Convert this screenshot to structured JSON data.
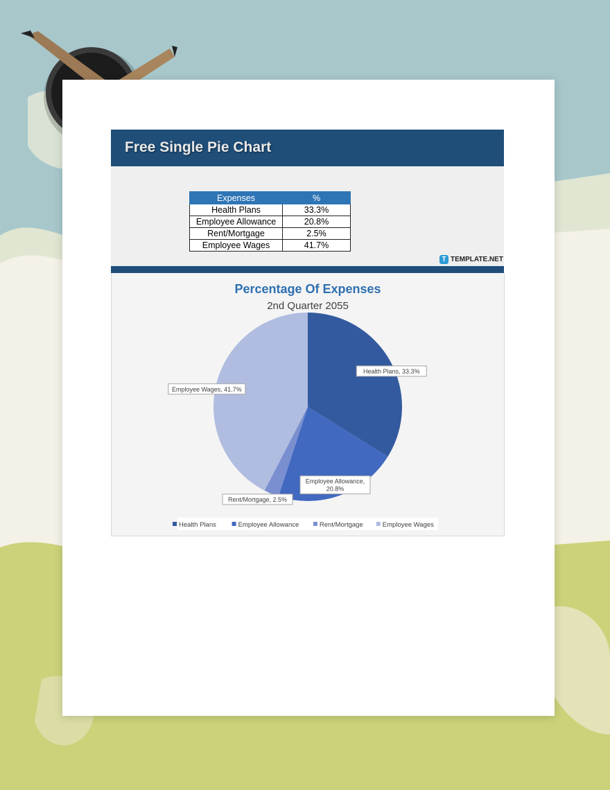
{
  "document": {
    "title": "Free Single Pie Chart",
    "brand": "TEMPLATE.NET",
    "brand_mark": "T"
  },
  "table": {
    "headers": [
      "Expenses",
      "%"
    ],
    "rows": [
      {
        "label": "Health Plans",
        "value": "33.3%"
      },
      {
        "label": "Employee Allowance",
        "value": "20.8%"
      },
      {
        "label": "Rent/Mortgage",
        "value": "2.5%"
      },
      {
        "label": "Employee Wages",
        "value": "41.7%"
      }
    ]
  },
  "colors": {
    "header_bar": "#1f4e79",
    "table_header": "#2e75b6",
    "slices": [
      "#335a9f",
      "#4169c0",
      "#7a8fd0",
      "#b0bde0"
    ]
  },
  "chart_data": {
    "type": "pie",
    "title": "Percentage Of Expenses",
    "subtitle": "2nd Quarter 2055",
    "categories": [
      "Health Plans",
      "Employee Allowance",
      "Rent/Mortgage",
      "Employee Wages"
    ],
    "values": [
      33.3,
      20.8,
      2.5,
      41.7
    ],
    "data_labels": [
      [
        "Health Plans, 33.3%"
      ],
      [
        "Employee Allowance,",
        "20.8%"
      ],
      [
        "Rent/Mortgage, 2.5%"
      ],
      [
        "Employee Wages, 41.7%"
      ]
    ],
    "legend": {
      "position": "bottom",
      "entries": [
        "Health Plans",
        "Employee Allowance",
        "Rent/Mortgage",
        "Employee Wages"
      ]
    }
  }
}
